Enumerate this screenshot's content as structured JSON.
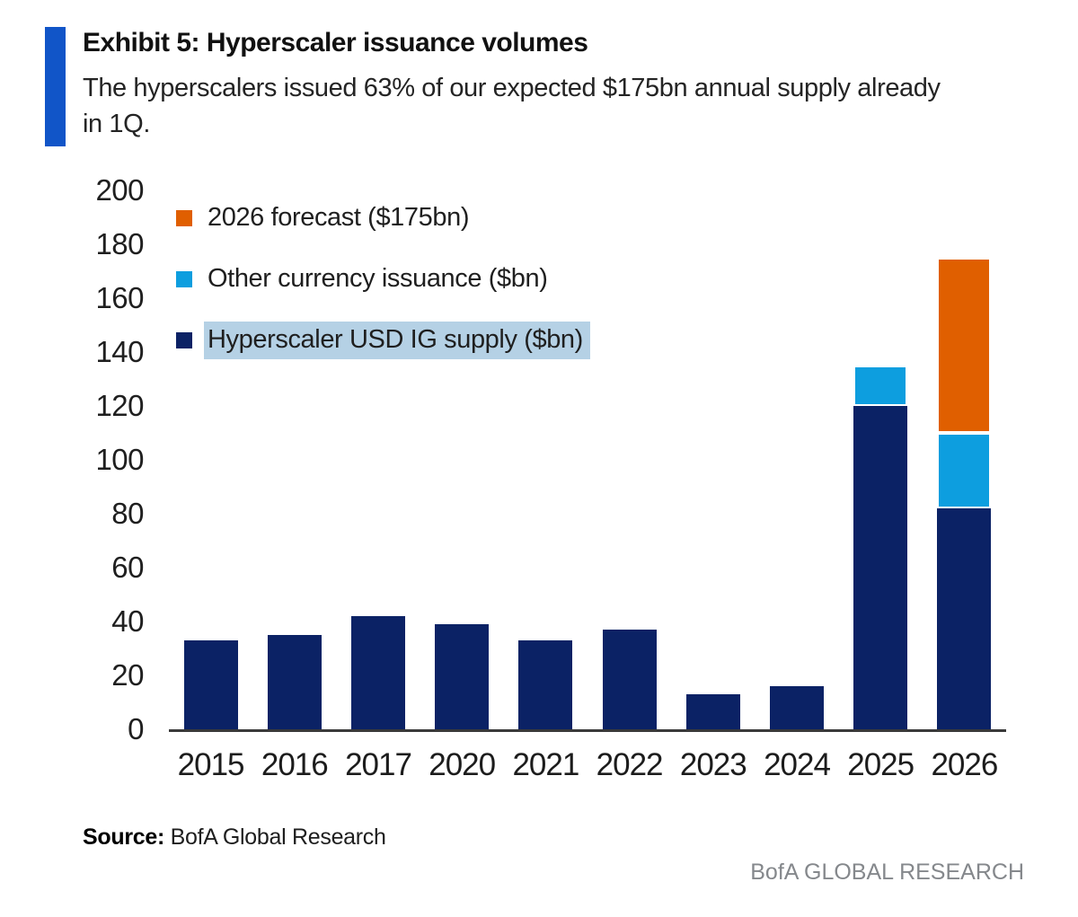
{
  "header": {
    "title": "Exhibit 5: Hyperscaler issuance volumes",
    "subtitle_line1": "The hyperscalers issued 63% of our expected $175bn annual supply already",
    "subtitle_line2": "in 1Q."
  },
  "legend": {
    "items": [
      {
        "label": "2026 forecast ($175bn)",
        "color": "#e05f00",
        "highlighted": false
      },
      {
        "label": "Other currency issuance ($bn)",
        "color": "#0d9edf",
        "highlighted": false
      },
      {
        "label": "Hyperscaler USD IG supply ($bn)",
        "color": "#0b2265",
        "highlighted": true
      }
    ],
    "highlight_color": "#b5d1e5"
  },
  "chart_data": {
    "type": "bar",
    "stacked": true,
    "title": "Hyperscaler issuance volumes",
    "xlabel": "",
    "ylabel": "",
    "ylim": [
      0,
      200
    ],
    "y_ticks": [
      200,
      180,
      160,
      140,
      120,
      100,
      80,
      60,
      40,
      20,
      0
    ],
    "grid": false,
    "legend_position": "top-left",
    "categories": [
      "2015",
      "2016",
      "2017",
      "2020",
      "2021",
      "2022",
      "2023",
      "2024",
      "2025",
      "2026"
    ],
    "series": [
      {
        "name": "Hyperscaler USD IG supply ($bn)",
        "color": "#0b2265",
        "values": [
          33,
          35,
          42,
          39,
          33,
          37,
          13,
          16,
          120,
          82
        ]
      },
      {
        "name": "Other currency issuance ($bn)",
        "color": "#0d9edf",
        "values": [
          0,
          0,
          0,
          0,
          0,
          0,
          0,
          0,
          15,
          28
        ]
      },
      {
        "name": "2026 forecast ($175bn)",
        "color": "#e05f00",
        "values": [
          0,
          0,
          0,
          0,
          0,
          0,
          0,
          0,
          0,
          65
        ]
      }
    ],
    "totals_note": {
      "2025_total": 135,
      "2026_total": 175
    }
  },
  "footer": {
    "source_label": "Source:",
    "source_text": "BofA Global Research",
    "brand": "BofA GLOBAL RESEARCH"
  },
  "colors": {
    "navy": "#0b2265",
    "light_blue": "#0d9edf",
    "orange": "#e05f00",
    "accent_bar": "#1155c8",
    "legend_highlight": "#b5d1e5",
    "axis_line": "#3a3a3a",
    "brand_gray": "#85888c"
  }
}
